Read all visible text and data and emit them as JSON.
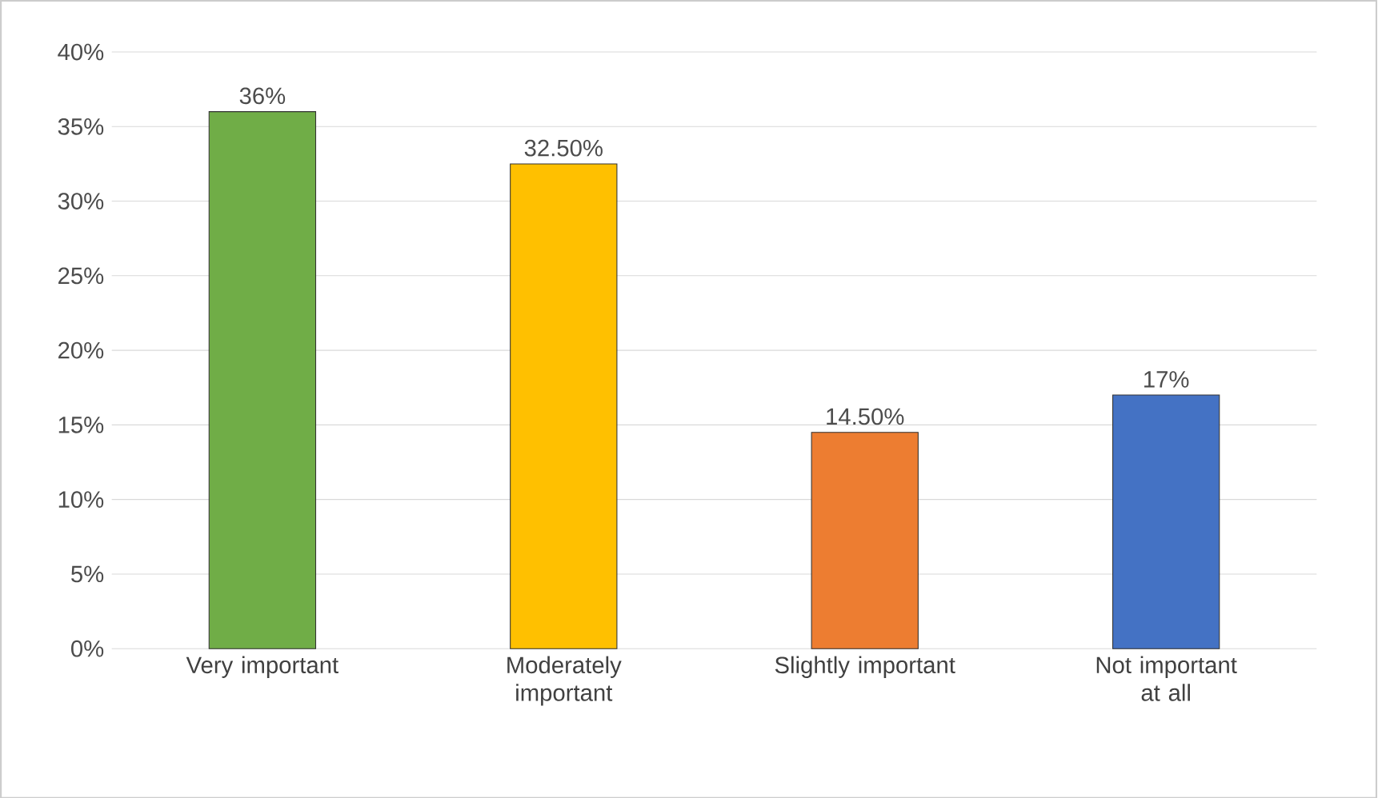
{
  "chart_data": {
    "type": "bar",
    "categories": [
      "Very important",
      "Moderately important",
      "Slightly important",
      "Not important at all"
    ],
    "values": [
      36,
      32.5,
      14.5,
      17
    ],
    "value_labels": [
      "36%",
      "32.50%",
      "14.50%",
      "17%"
    ],
    "colors": [
      "#70ad47",
      "#ffc000",
      "#ed7d31",
      "#4472c4"
    ],
    "ylim": [
      0,
      40
    ],
    "yticks": [
      {
        "value": 0,
        "label": "0%"
      },
      {
        "value": 5,
        "label": "5%"
      },
      {
        "value": 10,
        "label": "10%"
      },
      {
        "value": 15,
        "label": "15%"
      },
      {
        "value": 20,
        "label": "20%"
      },
      {
        "value": 25,
        "label": "25%"
      },
      {
        "value": 30,
        "label": "30%"
      },
      {
        "value": 35,
        "label": "35%"
      },
      {
        "value": 40,
        "label": "40%"
      }
    ],
    "grid": "y"
  }
}
